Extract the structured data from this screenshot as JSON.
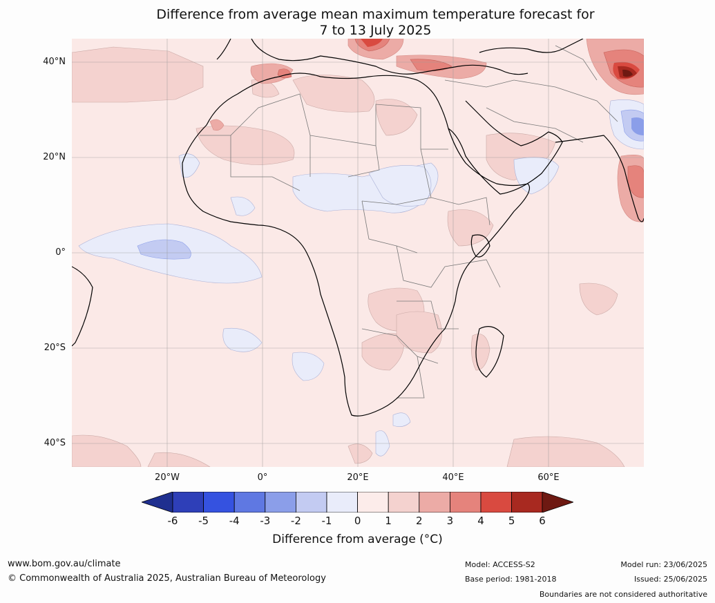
{
  "title": {
    "line1": "Difference from average mean maximum temperature forecast for",
    "line2": "7 to 13 July 2025"
  },
  "axes": {
    "lat_labels": [
      "40°N",
      "20°N",
      "0°",
      "20°S",
      "40°S"
    ],
    "lon_labels": [
      "20°W",
      "0°",
      "20°E",
      "40°E",
      "60°E"
    ]
  },
  "colorbar": {
    "ticks": [
      "-6",
      "-5",
      "-4",
      "-3",
      "-2",
      "-1",
      "0",
      "1",
      "2",
      "3",
      "4",
      "5",
      "6"
    ],
    "colors": [
      "#1f2f8f",
      "#2e3fb8",
      "#3552e0",
      "#5f78e2",
      "#8b9ee9",
      "#c3cbf2",
      "#e9ecfa",
      "#fcecea",
      "#f4d2cf",
      "#ecaba6",
      "#e5837c",
      "#d94a40",
      "#a82920",
      "#6e1912"
    ],
    "label": "Difference from average (°C)"
  },
  "footer": {
    "website": "www.bom.gov.au/climate",
    "copyright": "© Commonwealth of Australia 2025, Australian Bureau of Meteorology",
    "model": "Model: ACCESS-S2",
    "base_period": "Base period: 1981-2018",
    "model_run": "Model run: 23/06/2025",
    "issued": "Issued: 25/06/2025",
    "disclaimer": "Boundaries are not considered authoritative"
  }
}
